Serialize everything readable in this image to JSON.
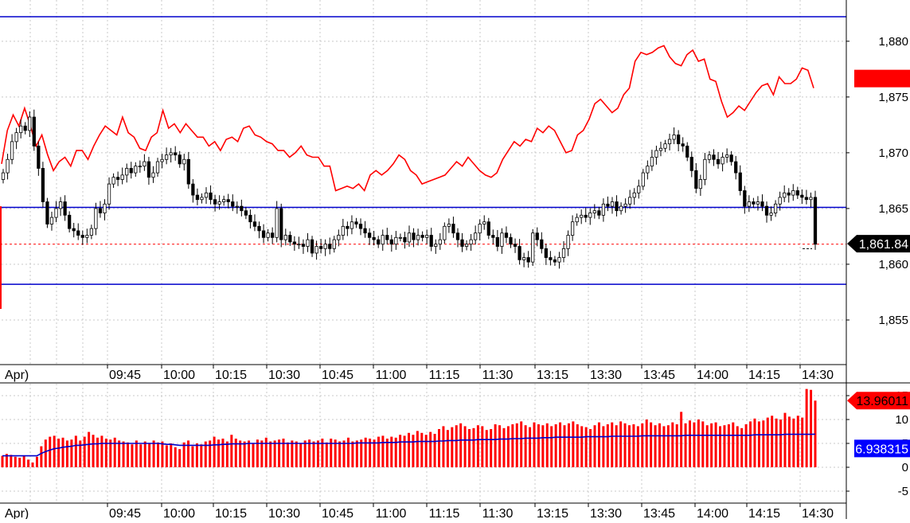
{
  "chart_data": [
    {
      "type": "candlestick",
      "panel": "price",
      "y_ticks": [
        "1,880",
        "1,875",
        "1,870",
        "1,865",
        "1,860",
        "1,855"
      ],
      "y_tick_values": [
        1880,
        1875,
        1870,
        1865,
        1860,
        1855
      ],
      "ylim": [
        1851.0,
        1883.7
      ],
      "x_ticks": [
        "Apr)",
        "09:45",
        "10:00",
        "10:15",
        "10:30",
        "10:45",
        "11:00",
        "11:15",
        "11:30",
        "13:15",
        "13:30",
        "13:45",
        "14:00",
        "14:15",
        "14:30"
      ],
      "grid": true,
      "horizontal_levels": [
        1882.2,
        1865.1,
        1858.2
      ],
      "dashed_level": 1861.8,
      "last_price_label": "1,861.84",
      "overlay_label": "1,875.8",
      "candle_closes": [
        1868.2,
        1869.4,
        1871.0,
        1871.8,
        1872.4,
        1872.0,
        1873.2,
        1870.6,
        1868.6,
        1865.6,
        1863.6,
        1864.2,
        1865.0,
        1865.6,
        1864.4,
        1863.2,
        1863.0,
        1862.6,
        1862.4,
        1862.6,
        1863.2,
        1865.0,
        1864.6,
        1865.4,
        1867.2,
        1867.8,
        1867.6,
        1868.0,
        1868.6,
        1868.2,
        1868.8,
        1868.8,
        1869.2,
        1867.8,
        1868.2,
        1869.2,
        1869.4,
        1869.8,
        1870.0,
        1869.8,
        1869.0,
        1869.4,
        1867.2,
        1866.2,
        1865.8,
        1866.0,
        1866.4,
        1865.8,
        1865.4,
        1865.6,
        1865.8,
        1865.6,
        1865.2,
        1865.2,
        1864.8,
        1864.4,
        1863.8,
        1863.4,
        1863.0,
        1862.4,
        1862.8,
        1862.4,
        1865.0,
        1862.2,
        1862.6,
        1862.0,
        1861.8,
        1861.8,
        1861.6,
        1862.2,
        1861.0,
        1861.6,
        1861.4,
        1861.8,
        1861.4,
        1862.2,
        1862.6,
        1863.4,
        1863.2,
        1863.8,
        1863.6,
        1863.2,
        1862.8,
        1862.4,
        1862.2,
        1861.8,
        1862.6,
        1862.2,
        1861.8,
        1862.4,
        1862.4,
        1862.0,
        1862.8,
        1862.2,
        1862.6,
        1862.4,
        1862.6,
        1861.6,
        1861.8,
        1862.2,
        1863.4,
        1863.6,
        1862.8,
        1862.2,
        1861.6,
        1861.8,
        1862.2,
        1862.8,
        1863.6,
        1863.8,
        1862.6,
        1862.4,
        1861.6,
        1862.8,
        1862.4,
        1861.8,
        1861.6,
        1860.4,
        1860.6,
        1860.2,
        1862.8,
        1862.2,
        1861.4,
        1860.6,
        1860.4,
        1860.2,
        1860.6,
        1861.4,
        1862.6,
        1863.8,
        1864.2,
        1864.4,
        1864.2,
        1864.6,
        1864.8,
        1864.4,
        1865.4,
        1865.2,
        1865.6,
        1864.8,
        1865.2,
        1865.4,
        1866.0,
        1866.4,
        1867.0,
        1868.2,
        1868.8,
        1869.6,
        1870.2,
        1870.4,
        1870.8,
        1871.2,
        1871.6,
        1870.8,
        1870.6,
        1869.6,
        1868.4,
        1866.8,
        1867.6,
        1869.4,
        1869.8,
        1869.4,
        1869.0,
        1869.6,
        1869.8,
        1869.2,
        1868.2,
        1866.6,
        1865.2,
        1865.6,
        1865.4,
        1865.6,
        1865.2,
        1864.4,
        1864.6,
        1865.4,
        1866.0,
        1866.4,
        1866.2,
        1866.6,
        1866.2,
        1866.0,
        1865.8,
        1866.0,
        1861.8
      ]
    },
    {
      "type": "line",
      "panel": "price-overlay",
      "series_values": [
        1869.0,
        1872.0,
        1873.4,
        1872.4,
        1874.0,
        1872.4,
        1870.6,
        1871.6,
        1869.8,
        1868.4,
        1869.2,
        1869.6,
        1868.8,
        1870.2,
        1870.2,
        1869.4,
        1870.6,
        1871.6,
        1872.4,
        1872.0,
        1871.6,
        1873.2,
        1871.8,
        1871.4,
        1870.4,
        1870.2,
        1871.4,
        1871.8,
        1873.8,
        1872.2,
        1872.6,
        1871.8,
        1872.6,
        1872.0,
        1871.4,
        1871.4,
        1870.6,
        1871.0,
        1870.2,
        1871.2,
        1871.4,
        1871.0,
        1872.2,
        1872.4,
        1871.6,
        1871.4,
        1871.0,
        1870.8,
        1870.2,
        1870.2,
        1869.6,
        1870.0,
        1870.6,
        1869.8,
        1869.6,
        1869.6,
        1868.8,
        1868.8,
        1866.6,
        1866.8,
        1867.0,
        1866.8,
        1867.2,
        1866.6,
        1868.0,
        1868.4,
        1868.0,
        1868.4,
        1869.0,
        1869.8,
        1869.4,
        1868.4,
        1868.0,
        1867.2,
        1867.4,
        1867.6,
        1867.8,
        1868.0,
        1868.6,
        1869.2,
        1868.8,
        1869.6,
        1869.0,
        1868.4,
        1868.0,
        1867.8,
        1868.2,
        1869.4,
        1870.2,
        1871.0,
        1870.6,
        1871.2,
        1871.0,
        1872.2,
        1871.8,
        1872.4,
        1872.0,
        1871.0,
        1870.0,
        1870.2,
        1871.6,
        1872.0,
        1873.0,
        1874.4,
        1874.8,
        1874.2,
        1873.6,
        1874.0,
        1875.2,
        1875.8,
        1878.2,
        1879.0,
        1878.8,
        1879.0,
        1879.4,
        1879.6,
        1878.6,
        1878.0,
        1877.8,
        1878.8,
        1879.2,
        1878.2,
        1878.4,
        1876.6,
        1876.4,
        1874.6,
        1873.2,
        1873.6,
        1874.2,
        1873.8,
        1874.6,
        1875.4,
        1876.0,
        1876.2,
        1875.2,
        1876.8,
        1876.2,
        1876.2,
        1876.6,
        1877.6,
        1877.4,
        1875.8
      ]
    },
    {
      "type": "bar",
      "panel": "indicator",
      "y_ticks": [
        "15",
        "10",
        "5",
        "0",
        "-5"
      ],
      "y_tick_values": [
        15,
        10,
        5,
        0,
        -5
      ],
      "ylim": [
        -7.5,
        17.5
      ],
      "x_ticks": [
        "Apr)",
        "09:45",
        "10:00",
        "10:15",
        "10:30",
        "10:45",
        "11:00",
        "11:15",
        "11:30",
        "13:15",
        "13:30",
        "13:45",
        "14:00",
        "14:15",
        "14:30"
      ],
      "grid": true,
      "series": [
        {
          "name": "13.96011",
          "color": "#ff0000",
          "values": [
            2.4,
            2.8,
            2.6,
            2.2,
            2.0,
            2.4,
            1.6,
            1.0,
            2.2,
            4.4,
            5.8,
            6.4,
            6.6,
            6.0,
            6.2,
            5.6,
            5.8,
            6.6,
            5.6,
            6.4,
            7.4,
            6.8,
            6.2,
            6.6,
            6.0,
            5.8,
            6.2,
            5.6,
            5.4,
            5.2,
            4.8,
            5.6,
            4.8,
            5.4,
            5.0,
            5.6,
            5.2,
            5.4,
            4.6,
            5.0,
            4.2,
            3.8,
            5.2,
            5.6,
            4.4,
            5.0,
            4.8,
            5.4,
            5.6,
            6.4,
            5.8,
            6.0,
            5.4,
            6.8,
            6.0,
            5.6,
            5.4,
            5.6,
            5.0,
            5.8,
            5.6,
            6.2,
            5.4,
            5.6,
            5.8,
            6.0,
            5.2,
            5.6,
            5.4,
            5.0,
            5.6,
            5.8,
            5.4,
            5.6,
            6.0,
            5.2,
            6.0,
            5.8,
            5.4,
            5.6,
            6.2,
            5.4,
            5.6,
            5.8,
            6.2,
            6.0,
            5.8,
            6.4,
            6.6,
            6.0,
            6.4,
            6.2,
            6.8,
            6.6,
            7.2,
            6.8,
            7.6,
            7.2,
            6.8,
            7.4,
            7.0,
            8.0,
            8.6,
            7.8,
            8.4,
            8.8,
            9.2,
            8.6,
            8.0,
            8.2,
            8.8,
            8.6,
            7.8,
            8.0,
            9.0,
            8.8,
            8.2,
            8.6,
            9.0,
            9.2,
            9.6,
            8.8,
            8.4,
            9.4,
            9.0,
            8.8,
            9.2,
            8.6,
            9.0,
            9.4,
            8.8,
            9.2,
            9.6,
            9.0,
            8.6,
            8.4,
            8.0,
            8.8,
            9.4,
            8.6,
            9.0,
            9.4,
            8.8,
            9.6,
            9.2,
            8.8,
            9.0,
            8.6,
            9.2,
            10.0,
            9.4,
            8.8,
            9.2,
            8.6,
            8.8,
            9.4,
            9.0,
            11.6,
            9.2,
            9.8,
            9.4,
            10.0,
            9.6,
            8.8,
            9.2,
            9.4,
            8.6,
            8.8,
            9.0,
            9.4,
            8.6,
            8.2,
            9.0,
            9.6,
            10.2,
            9.6,
            9.8,
            10.4,
            10.8,
            10.2,
            10.0,
            11.4,
            10.6,
            10.2,
            10.8,
            10.4,
            16.4,
            16.2,
            13.96
          ]
        },
        {
          "name": "6.938315",
          "color": "#0000cc",
          "values": [
            2.4,
            2.4,
            2.4,
            2.4,
            2.4,
            2.4,
            2.4,
            2.4,
            2.4,
            2.9,
            3.3,
            3.6,
            3.9,
            4.0,
            4.2,
            4.3,
            4.4,
            4.6,
            4.6,
            4.7,
            4.8,
            4.9,
            4.9,
            5.0,
            5.0,
            5.0,
            5.0,
            5.0,
            5.0,
            5.0,
            5.0,
            5.0,
            5.0,
            5.0,
            5.0,
            5.0,
            5.0,
            4.9,
            4.8,
            4.8,
            4.7,
            4.6,
            4.6,
            4.6,
            4.6,
            4.6,
            4.6,
            4.6,
            4.6,
            4.7,
            4.7,
            4.8,
            4.8,
            4.9,
            4.9,
            4.9,
            4.9,
            5.0,
            5.0,
            5.0,
            5.0,
            5.0,
            5.0,
            5.0,
            5.0,
            5.0,
            5.0,
            5.0,
            5.0,
            5.0,
            5.0,
            5.0,
            5.0,
            5.0,
            5.0,
            5.0,
            5.0,
            5.0,
            5.0,
            5.0,
            5.0,
            5.0,
            5.1,
            5.1,
            5.1,
            5.1,
            5.1,
            5.1,
            5.2,
            5.2,
            5.2,
            5.2,
            5.3,
            5.3,
            5.3,
            5.3,
            5.4,
            5.4,
            5.4,
            5.4,
            5.4,
            5.5,
            5.5,
            5.6,
            5.6,
            5.6,
            5.7,
            5.7,
            5.7,
            5.7,
            5.8,
            5.8,
            5.8,
            5.8,
            5.8,
            5.9,
            5.9,
            5.9,
            6.0,
            6.0,
            6.0,
            6.1,
            6.1,
            6.1,
            6.1,
            6.2,
            6.2,
            6.2,
            6.3,
            6.3,
            6.3,
            6.3,
            6.3,
            6.3,
            6.3,
            6.4,
            6.4,
            6.4,
            6.4,
            6.4,
            6.4,
            6.5,
            6.5,
            6.5,
            6.5,
            6.5,
            6.5,
            6.5,
            6.6,
            6.6,
            6.6,
            6.6,
            6.6,
            6.6,
            6.6,
            6.6,
            6.6,
            6.6,
            6.7,
            6.7,
            6.7,
            6.7,
            6.7,
            6.7,
            6.7,
            6.7,
            6.7,
            6.7,
            6.7,
            6.7,
            6.7,
            6.7,
            6.7,
            6.7,
            6.8,
            6.8,
            6.8,
            6.8,
            6.8,
            6.8,
            6.8,
            6.9,
            6.9,
            6.9,
            6.9,
            6.9,
            6.9,
            6.9,
            6.94
          ]
        }
      ],
      "value_labels": [
        "13.96011",
        "6.938315"
      ]
    }
  ]
}
